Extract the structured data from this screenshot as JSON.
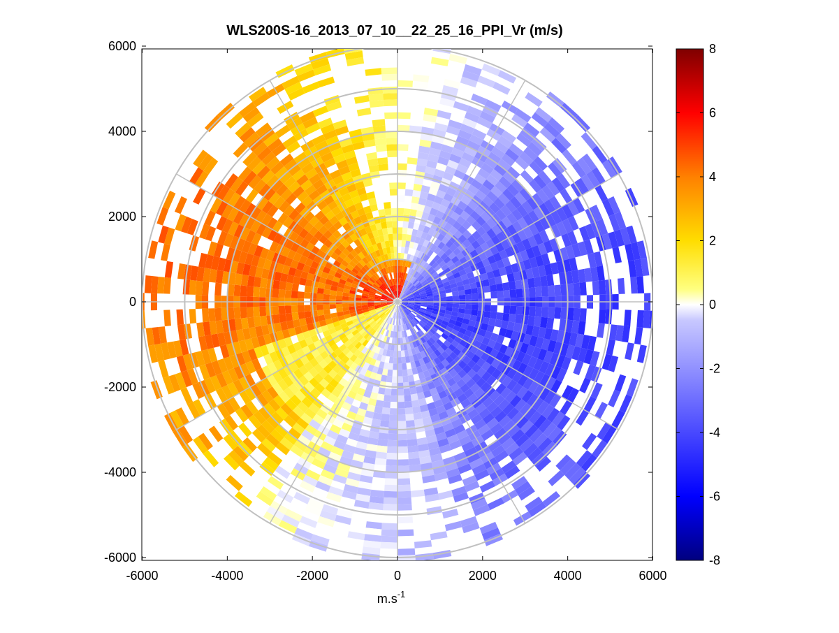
{
  "chart_data": {
    "type": "heatmap",
    "subtype": "polar-ppi",
    "title": "WLS200S-16_2013_07_10__22_25_16_PPI_Vr (m/s)",
    "xlabel_base": "m.s",
    "xlabel_sup": "-1",
    "ylabel": "",
    "xlim": [
      -6000,
      6000
    ],
    "ylim": [
      -6000,
      6000
    ],
    "x_ticks": [
      -6000,
      -4000,
      -2000,
      0,
      2000,
      4000,
      6000
    ],
    "y_ticks": [
      6000,
      4000,
      2000,
      0,
      -2000,
      -4000,
      -6000
    ],
    "range_rings": [
      1000,
      2000,
      3000,
      4000,
      5000,
      6000
    ],
    "spoke_angles_deg": [
      0,
      30,
      60,
      90,
      120,
      150,
      180,
      210,
      240,
      270,
      300,
      330
    ],
    "max_range": 6000,
    "colorbar": {
      "min": -8,
      "max": 8,
      "ticks": [
        8,
        6,
        4,
        2,
        0,
        -2,
        -4,
        -6,
        -8
      ],
      "colors": [
        "#00007f",
        "#0000ff",
        "#ffffff",
        "#ffff00",
        "#ff0000",
        "#7f0000"
      ]
    },
    "velocity_field": {
      "description_sectors": [
        {
          "azimuth_from": 0,
          "azimuth_to": 90,
          "typical_vr": -4
        },
        {
          "azimuth_from": 90,
          "azimuth_to": 180,
          "typical_vr": -4
        },
        {
          "azimuth_from": 180,
          "azimuth_to": 270,
          "typical_vr": 2
        },
        {
          "azimuth_from": 270,
          "azimuth_to": 360,
          "typical_vr": 4
        }
      ],
      "near_center_max_vr": 6.5,
      "far_west_vr": 4
    }
  }
}
